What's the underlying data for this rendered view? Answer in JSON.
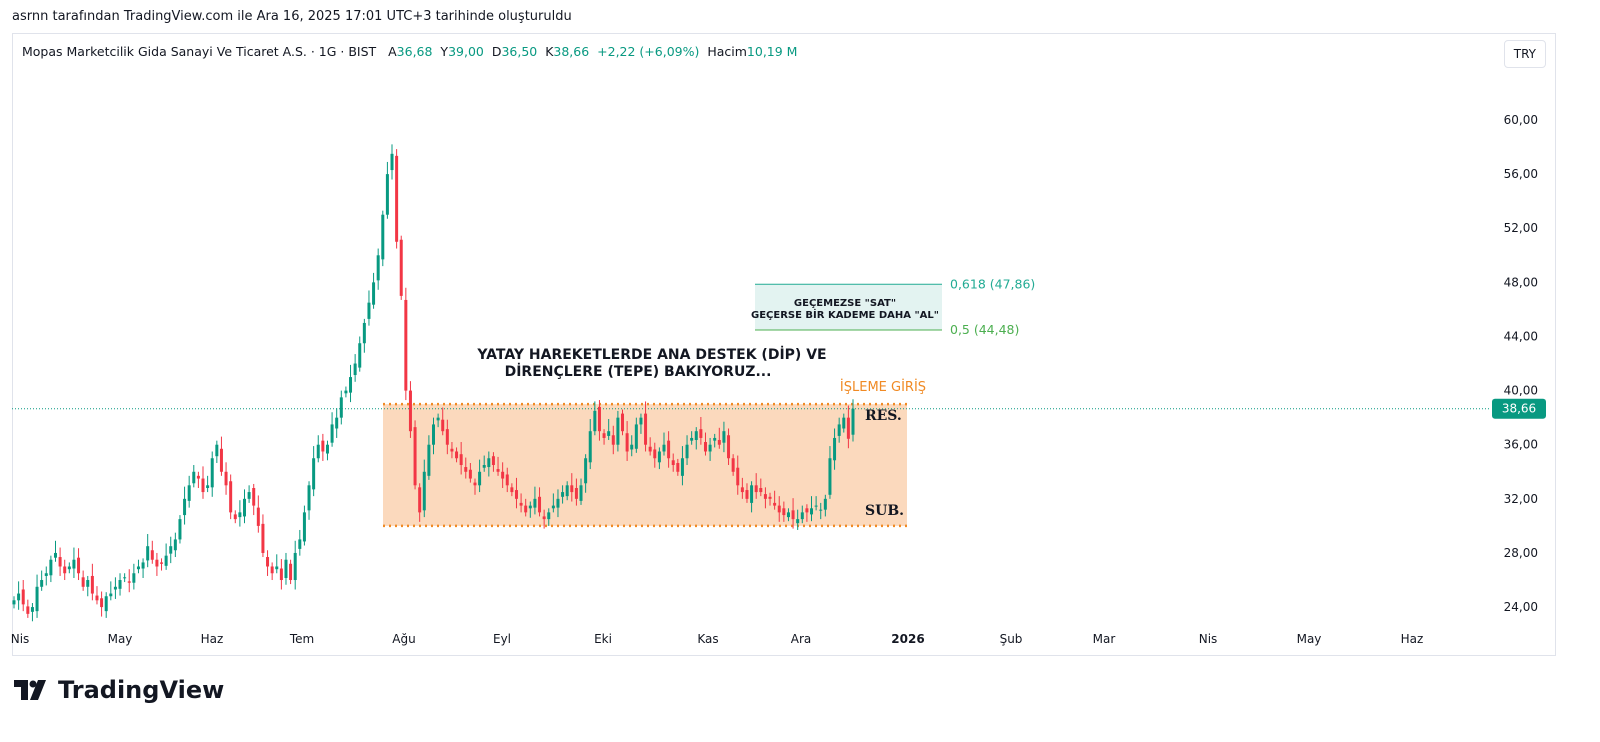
{
  "caption": "asrnn tarafından TradingView.com ile Ara 16, 2025 17:01 UTC+3 tarihinde oluşturuldu",
  "legend": {
    "symbol": "Mopas Marketcilik Gida Sanayi Ve Ticaret A.S. · 1G · BIST",
    "o_label": "A",
    "o": "36,68",
    "h_label": "Y",
    "h": "39,00",
    "l_label": "D",
    "l": "36,50",
    "c_label": "K",
    "c": "38,66",
    "change": "+2,22 (+6,09%)",
    "vol_label": "Hacim",
    "vol": "10,19 M"
  },
  "currency": "TRY",
  "logo": "TradingView",
  "chart_data": {
    "type": "candlestick",
    "colors": {
      "up": "#089981",
      "down": "#f23645",
      "box": "#fbd9bd",
      "box_border": "#f08a24",
      "fib": "#e3f3f1"
    },
    "ylim": [
      22,
      63
    ],
    "y_ticks": [
      "24,00",
      "28,00",
      "32,00",
      "36,00",
      "40,00",
      "44,00",
      "48,00",
      "52,00",
      "56,00",
      "60,00"
    ],
    "y_tick_values": [
      24,
      28,
      32,
      36,
      40,
      44,
      48,
      52,
      56,
      60
    ],
    "x_ticks": [
      "Nis",
      "May",
      "Haz",
      "Tem",
      "Ağu",
      "Eyl",
      "Eki",
      "Kas",
      "Ara",
      "2026",
      "Şub",
      "Mar",
      "Nis",
      "May",
      "Haz"
    ],
    "last_price": 38.66,
    "last_price_label": "38,66",
    "closes": [
      24.5,
      25,
      24.2,
      23.5,
      24,
      25.5,
      26,
      26.5,
      27.5,
      28,
      27,
      26.5,
      27,
      27.5,
      26.5,
      25.5,
      26,
      25,
      24.5,
      24,
      24.8,
      25,
      25.5,
      26,
      26.2,
      25.8,
      26.5,
      27,
      27.3,
      28.5,
      27.5,
      27,
      27.2,
      27.8,
      28.5,
      29,
      30.5,
      32,
      33,
      34,
      33.5,
      32.5,
      33,
      35,
      36,
      34,
      33,
      31,
      30.5,
      31,
      32,
      32.5,
      31.5,
      30,
      28,
      27,
      26.5,
      27,
      26,
      27.5,
      26,
      28,
      29,
      31,
      33,
      35,
      36,
      35.5,
      36,
      37.5,
      38,
      39.5,
      40,
      41,
      42,
      43.5,
      45,
      46.5,
      48,
      50,
      53,
      56,
      57.5,
      51,
      47,
      40,
      37,
      33,
      31,
      34,
      36,
      37.5,
      38,
      37,
      36,
      35.5,
      35,
      34.5,
      34,
      33.5,
      33,
      34,
      34.5,
      35,
      34.5,
      34,
      33.5,
      33,
      32.5,
      32,
      31.5,
      31,
      31.5,
      32,
      31,
      30.5,
      31,
      31.5,
      32,
      32.5,
      33,
      32.5,
      32,
      33,
      35,
      37,
      38.5,
      37,
      36.5,
      37,
      36,
      38,
      37,
      35.5,
      36,
      37.5,
      38,
      36,
      35.5,
      35,
      35.5,
      36,
      35,
      34.5,
      34,
      35,
      36,
      36.5,
      37,
      36.5,
      35.5,
      36,
      36.5,
      36,
      37,
      35,
      34,
      33,
      32.5,
      32,
      33,
      32.5,
      32.5,
      32,
      32,
      31.5,
      31,
      30.8,
      31,
      30.5,
      30.5,
      31,
      31,
      31.3,
      31.5,
      31.2,
      32,
      35,
      36.5,
      37.5,
      38,
      36.44,
      38.66
    ],
    "range_box": {
      "top": 39.0,
      "bottom": 30.0,
      "label_top": "RES.",
      "label_bottom": "SUB.",
      "entry_label": "İŞLEME GİRİŞ"
    },
    "fib": {
      "upper": 47.86,
      "lower": 44.48,
      "upper_label": "0,618 (47,86)",
      "lower_label": "0,5 (44,48)",
      "note_line1": "GEÇEMEZSE \"SAT\"",
      "note_line2": "GEÇERSE BİR KADEME DAHA \"AL\""
    },
    "annotation": {
      "line1": "YATAY HAREKETLERDE ANA DESTEK (DİP) VE",
      "line2": "DİRENÇLERE (TEPE) BAKIYORUZ..."
    }
  }
}
